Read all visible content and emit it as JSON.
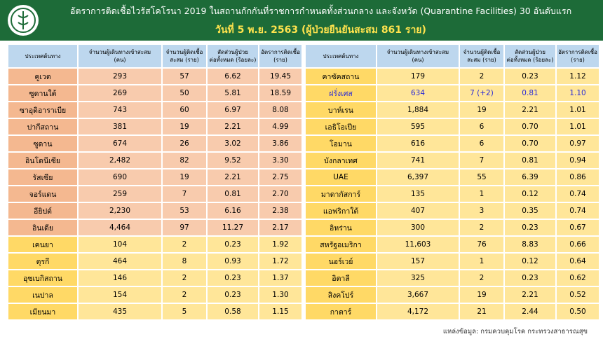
{
  "header": {
    "title": "อัตราการติดเชื้อไวรัสโคโรนา 2019 ในสถานกักกันที่ราชการกำหนดทั้งส่วนกลาง และจังหวัด (Quarantine Facilities) 30 อันดับแรก",
    "subtitle": "วันที่ 5 พ.ย. 2563  (ผู้ป่วยยืนยันสะสม 861 ราย)"
  },
  "table_left": {
    "columns": [
      "ประเทศต้นทาง",
      "จำนวนผู้เดินทางเข้าสะสม\n(คน)",
      "จำนวนผู้ติดเชื้อ\nสะสม (ราย)",
      "สัดส่วนผู้ป่วย\nต่อทั้งหมด (ร้อยละ)",
      "อัตราการติดเชื้อ\n(ราย)"
    ],
    "rows": [
      [
        "คูเวต",
        "293",
        "57",
        "6.62",
        "19.45"
      ],
      [
        "ซูดานใต้",
        "269",
        "50",
        "5.81",
        "18.59"
      ],
      [
        "ซาอุดิอาราเบีย",
        "743",
        "60",
        "6.97",
        "8.08"
      ],
      [
        "ปากีสถาน",
        "381",
        "19",
        "2.21",
        "4.99"
      ],
      [
        "ซูดาน",
        "674",
        "26",
        "3.02",
        "3.86"
      ],
      [
        "อินโดนีเซีย",
        "2,482",
        "82",
        "9.52",
        "3.30"
      ],
      [
        "รัสเซีย",
        "690",
        "19",
        "2.21",
        "2.75"
      ],
      [
        "จอร์แดน",
        "259",
        "7",
        "0.81",
        "2.70"
      ],
      [
        "อียิปต์",
        "2,230",
        "53",
        "6.16",
        "2.38"
      ],
      [
        "อินเดีย",
        "4,464",
        "97",
        "11.27",
        "2.17"
      ],
      [
        "เคนยา",
        "104",
        "2",
        "0.23",
        "1.92"
      ],
      [
        "ตุรกี",
        "464",
        "8",
        "0.93",
        "1.72"
      ],
      [
        "อุซเบกิสถาน",
        "146",
        "2",
        "0.23",
        "1.37"
      ],
      [
        "เนปาล",
        "154",
        "2",
        "0.23",
        "1.30"
      ],
      [
        "เมียนมา",
        "435",
        "5",
        "0.58",
        "1.15"
      ]
    ]
  },
  "table_right": {
    "columns": [
      "ประเทศต้นทาง",
      "จำนวนผู้เดินทางเข้าสะสม\n(คน)",
      "จำนวนผู้ติดเชื้อ\nสะสม (ราย)",
      "สัดส่วนผู้ป่วย\nต่อทั้งหมด (ร้อยละ)",
      "อัตราการติดเชื้อ\n(ราย)"
    ],
    "rows": [
      [
        "คาซัคสถาน",
        "179",
        "2",
        "0.23",
        "1.12"
      ],
      [
        "ฝรั่งเศส",
        "634",
        "7 (+2)",
        "0.81",
        "1.10"
      ],
      [
        "บาห์เรน",
        "1,884",
        "19",
        "2.21",
        "1.01"
      ],
      [
        "เอธิโอเปีย",
        "595",
        "6",
        "0.70",
        "1.01"
      ],
      [
        "โอมาน",
        "616",
        "6",
        "0.70",
        "0.97"
      ],
      [
        "บังกลาเทศ",
        "741",
        "7",
        "0.81",
        "0.94"
      ],
      [
        "UAE",
        "6,397",
        "55",
        "6.39",
        "0.86"
      ],
      [
        "มาดากัสการ์",
        "135",
        "1",
        "0.12",
        "0.74"
      ],
      [
        "แอฟริกาใต้",
        "407",
        "3",
        "0.35",
        "0.74"
      ],
      [
        "อิหร่าน",
        "300",
        "2",
        "0.23",
        "0.67"
      ],
      [
        "สหรัฐอเมริกา",
        "11,603",
        "76",
        "8.83",
        "0.66"
      ],
      [
        "นอร์เวย์",
        "157",
        "1",
        "0.12",
        "0.64"
      ],
      [
        "อิตาลี",
        "325",
        "2",
        "0.23",
        "0.62"
      ],
      [
        "สิงคโปร์",
        "3,667",
        "19",
        "2.21",
        "0.52"
      ],
      [
        "กาตาร์",
        "4,172",
        "21",
        "2.44",
        "0.50"
      ]
    ]
  },
  "source": "แหล่งข้อมูล: กรมควบคุมโรค กระทรวงสาธารณสุข"
}
